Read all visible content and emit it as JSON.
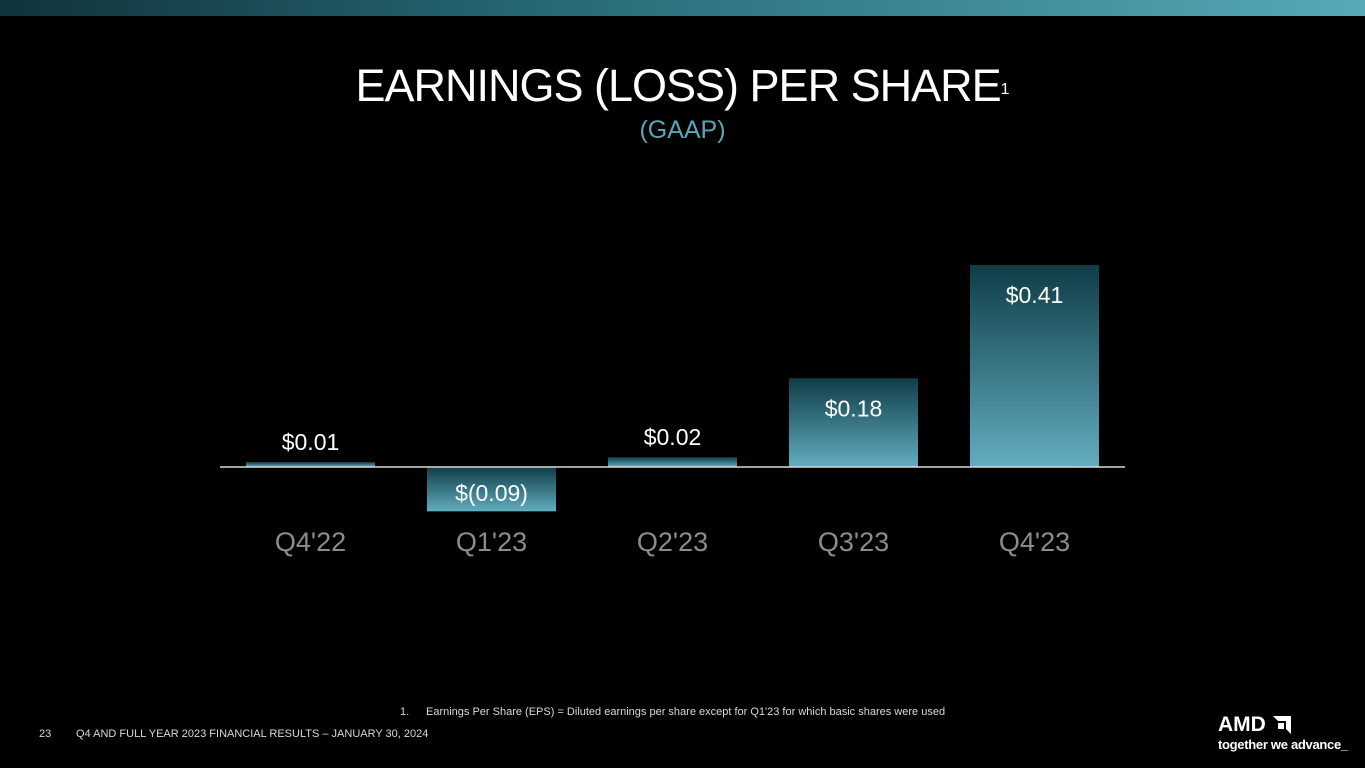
{
  "slide": {
    "title": "EARNINGS (LOSS) PER SHARE",
    "title_footnote_mark": "1",
    "subtitle": "(GAAP)",
    "footnote_number": "1.",
    "footnote_text": "Earnings Per Share (EPS) = Diluted earnings per share except for Q1'23 for which basic shares were used",
    "page_number": "23",
    "footer": "Q4 AND FULL YEAR 2023 FINANCIAL RESULTS – JANUARY 30, 2024"
  },
  "logo": {
    "wordmark": "AMD",
    "tagline": "together we advance_"
  },
  "colors": {
    "background": "#000000",
    "accent": "#5aa6b7",
    "bar_top": "#0f3d47",
    "bar_bottom": "#62adc0",
    "axis": "#d9d9d9",
    "tick_label": "#8c8c8c"
  },
  "chart_data": {
    "type": "bar",
    "title": "EARNINGS (LOSS) PER SHARE",
    "subtitle": "(GAAP)",
    "xlabel": "",
    "ylabel": "",
    "categories": [
      "Q4'22",
      "Q1'23",
      "Q2'23",
      "Q3'23",
      "Q4'23"
    ],
    "values": [
      0.01,
      -0.09,
      0.02,
      0.18,
      0.41
    ],
    "labels": [
      "$0.01",
      "$(0.09)",
      "$0.02",
      "$0.18",
      "$0.41"
    ],
    "ylim": [
      -0.09,
      0.41
    ],
    "grid": false,
    "legend": "none"
  }
}
